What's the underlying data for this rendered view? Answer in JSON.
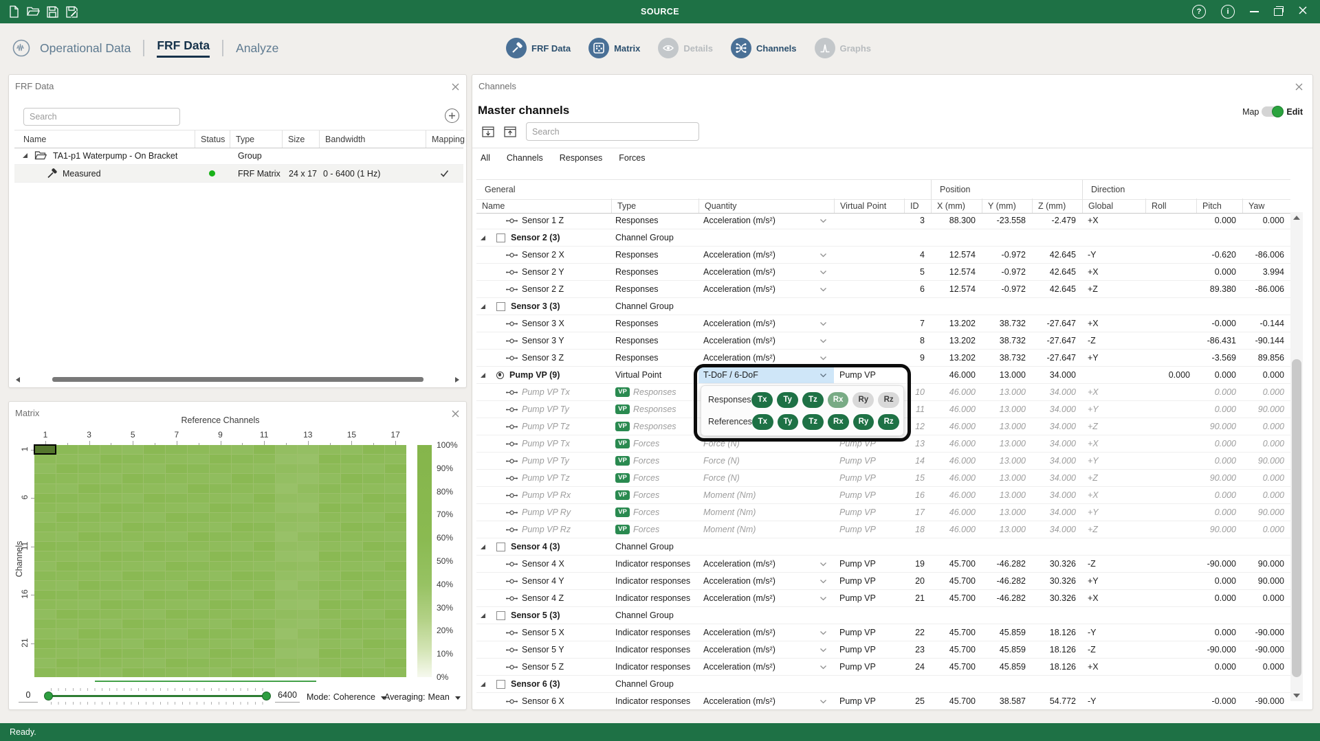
{
  "window": {
    "title": "SOURCE",
    "status_text": "Ready.",
    "help_glyph": "?",
    "info_glyph": "i",
    "toolbar_icons": [
      "new-file-icon",
      "open-file-icon",
      "save-icon",
      "save-as-icon"
    ],
    "window_controls": [
      "help-icon",
      "info-icon",
      "minimize-icon",
      "restore-icon",
      "close-icon"
    ]
  },
  "nav": {
    "tabs": [
      {
        "label": "Operational Data",
        "active": false
      },
      {
        "label": "FRF Data",
        "active": true
      },
      {
        "label": "Analyze",
        "active": false
      }
    ],
    "tools": [
      {
        "label": "FRF Data",
        "icon": "hammer-icon",
        "enabled": true
      },
      {
        "label": "Matrix",
        "icon": "matrix-icon",
        "enabled": true
      },
      {
        "label": "Details",
        "icon": "eye-icon",
        "enabled": false
      },
      {
        "label": "Channels",
        "icon": "channels-icon",
        "enabled": true
      },
      {
        "label": "Graphs",
        "icon": "graph-icon",
        "enabled": false
      }
    ]
  },
  "frf_panel": {
    "title": "FRF Data",
    "search_placeholder": "Search",
    "columns": [
      "Name",
      "Status",
      "Type",
      "Size",
      "Bandwidth",
      "Mapping"
    ],
    "rows": [
      {
        "kind": "group",
        "name": "TA1-p1 Waterpump - On Bracket",
        "type": "Group"
      },
      {
        "kind": "item",
        "name": "Measured",
        "status": "green",
        "type": "FRF Matrix",
        "size": "24 x 17",
        "bandwidth": "0 - 6400 (1 Hz)",
        "mapping": "checked"
      }
    ]
  },
  "matrix_panel": {
    "title": "Matrix",
    "range_min": "0",
    "range_max": "6400",
    "mode_label": "Mode:",
    "mode_value": "Coherence",
    "averaging_label": "Averaging:",
    "averaging_value": "Mean"
  },
  "chart_data": {
    "type": "heatmap",
    "title": "",
    "xlabel": "Reference Channels",
    "ylabel": "Channels",
    "n_cols": 17,
    "n_rows": 24,
    "x_ticks": [
      1,
      3,
      5,
      7,
      9,
      11,
      13,
      15,
      17
    ],
    "y_ticks": [
      1,
      6,
      11,
      16,
      21
    ],
    "uniform_value_pct": 78,
    "lighter_columns": [
      12,
      13
    ],
    "selected_cell": {
      "row": 1,
      "col": 1
    },
    "colorbar_ticks": [
      "100%",
      "90%",
      "80%",
      "70%",
      "60%",
      "50%",
      "40%",
      "30%",
      "20%",
      "10%",
      "0%"
    ],
    "colorbar_range_pct": [
      0,
      100
    ],
    "legend_position": "right"
  },
  "channels_panel": {
    "title": "Channels",
    "heading": "Master channels",
    "search_placeholder": "Search",
    "map_label": "Map",
    "edit_label": "Edit",
    "edit_active": true,
    "filters": [
      "All",
      "Channels",
      "Responses",
      "Forces"
    ],
    "column_groups": [
      "General",
      "Position",
      "Direction"
    ],
    "columns": [
      "Name",
      "Type",
      "Quantity",
      "Virtual Point",
      "ID",
      "X (mm)",
      "Y (mm)",
      "Z (mm)",
      "Global",
      "Roll",
      "Pitch",
      "Yaw"
    ],
    "rows": [
      {
        "kind": "ch",
        "name": "Sensor 1 Z",
        "type": "Responses",
        "quantity": "Acceleration (m/s²)",
        "chevron": true,
        "id": "3",
        "x": "88.300",
        "y": "-23.558",
        "z": "-2.479",
        "global": "+X",
        "pitch": "0.000",
        "yaw": "0.000"
      },
      {
        "kind": "group",
        "name": "Sensor 2 (3)",
        "type": "Channel Group"
      },
      {
        "kind": "ch",
        "name": "Sensor 2 X",
        "type": "Responses",
        "quantity": "Acceleration (m/s²)",
        "chevron": true,
        "id": "4",
        "x": "12.574",
        "y": "-0.972",
        "z": "42.645",
        "global": "-Y",
        "pitch": "-0.620",
        "yaw": "-86.006"
      },
      {
        "kind": "ch",
        "name": "Sensor 2 Y",
        "type": "Responses",
        "quantity": "Acceleration (m/s²)",
        "chevron": true,
        "id": "5",
        "x": "12.574",
        "y": "-0.972",
        "z": "42.645",
        "global": "+X",
        "pitch": "0.000",
        "yaw": "3.994"
      },
      {
        "kind": "ch",
        "name": "Sensor 2 Z",
        "type": "Responses",
        "quantity": "Acceleration (m/s²)",
        "chevron": true,
        "id": "6",
        "x": "12.574",
        "y": "-0.972",
        "z": "42.645",
        "global": "+Z",
        "pitch": "89.380",
        "yaw": "-86.006"
      },
      {
        "kind": "group",
        "name": "Sensor 3 (3)",
        "type": "Channel Group"
      },
      {
        "kind": "ch",
        "name": "Sensor 3 X",
        "type": "Responses",
        "quantity": "Acceleration (m/s²)",
        "chevron": true,
        "id": "7",
        "x": "13.202",
        "y": "38.732",
        "z": "-27.647",
        "global": "+X",
        "pitch": "-0.000",
        "yaw": "-0.144"
      },
      {
        "kind": "ch",
        "name": "Sensor 3 Y",
        "type": "Responses",
        "quantity": "Acceleration (m/s²)",
        "chevron": true,
        "id": "8",
        "x": "13.202",
        "y": "38.732",
        "z": "-27.647",
        "global": "-Z",
        "pitch": "-86.431",
        "yaw": "-90.144"
      },
      {
        "kind": "ch",
        "name": "Sensor 3 Z",
        "type": "Responses",
        "quantity": "Acceleration (m/s²)",
        "chevron": true,
        "id": "9",
        "x": "13.202",
        "y": "38.732",
        "z": "-27.647",
        "global": "+Y",
        "pitch": "-3.569",
        "yaw": "89.856"
      },
      {
        "kind": "vpgroup",
        "name": "Pump VP (9)",
        "type": "Virtual Point",
        "virtual_point": "Pump VP",
        "x": "46.000",
        "y": "13.000",
        "z": "34.000",
        "roll": "0.000",
        "pitch": "0.000",
        "yaw": "0.000"
      },
      {
        "kind": "vpch",
        "name": "Pump VP Tx",
        "type": "Responses",
        "id": "10",
        "x": "46.000",
        "y": "13.000",
        "z": "34.000",
        "global": "+X",
        "pitch": "0.000",
        "yaw": "0.000"
      },
      {
        "kind": "vpch",
        "name": "Pump VP Ty",
        "type": "Responses",
        "id": "11",
        "x": "46.000",
        "y": "13.000",
        "z": "34.000",
        "global": "+Y",
        "pitch": "0.000",
        "yaw": "90.000"
      },
      {
        "kind": "vpch",
        "name": "Pump VP Tz",
        "type": "Responses",
        "id": "12",
        "x": "46.000",
        "y": "13.000",
        "z": "34.000",
        "global": "+Z",
        "pitch": "90.000",
        "yaw": "0.000"
      },
      {
        "kind": "vpch",
        "name": "Pump VP Tx",
        "type": "Forces",
        "quantity": "Force (N)",
        "virtual_point": "Pump VP",
        "id": "13",
        "x": "46.000",
        "y": "13.000",
        "z": "34.000",
        "global": "+X",
        "pitch": "0.000",
        "yaw": "0.000"
      },
      {
        "kind": "vpch",
        "name": "Pump VP Ty",
        "type": "Forces",
        "quantity": "Force (N)",
        "virtual_point": "Pump VP",
        "id": "14",
        "x": "46.000",
        "y": "13.000",
        "z": "34.000",
        "global": "+Y",
        "pitch": "0.000",
        "yaw": "90.000"
      },
      {
        "kind": "vpch",
        "name": "Pump VP Tz",
        "type": "Forces",
        "quantity": "Force (N)",
        "virtual_point": "Pump VP",
        "id": "15",
        "x": "46.000",
        "y": "13.000",
        "z": "34.000",
        "global": "+Z",
        "pitch": "90.000",
        "yaw": "0.000"
      },
      {
        "kind": "vpch",
        "name": "Pump VP Rx",
        "type": "Forces",
        "quantity": "Moment (Nm)",
        "virtual_point": "Pump VP",
        "id": "16",
        "x": "46.000",
        "y": "13.000",
        "z": "34.000",
        "global": "+X",
        "pitch": "0.000",
        "yaw": "0.000"
      },
      {
        "kind": "vpch",
        "name": "Pump VP Ry",
        "type": "Forces",
        "quantity": "Moment (Nm)",
        "virtual_point": "Pump VP",
        "id": "17",
        "x": "46.000",
        "y": "13.000",
        "z": "34.000",
        "global": "+Y",
        "pitch": "0.000",
        "yaw": "90.000"
      },
      {
        "kind": "vpch",
        "name": "Pump VP Rz",
        "type": "Forces",
        "quantity": "Moment (Nm)",
        "virtual_point": "Pump VP",
        "id": "18",
        "x": "46.000",
        "y": "13.000",
        "z": "34.000",
        "global": "+Z",
        "pitch": "90.000",
        "yaw": "0.000"
      },
      {
        "kind": "group",
        "name": "Sensor 4 (3)",
        "type": "Channel Group"
      },
      {
        "kind": "ch",
        "name": "Sensor 4 X",
        "type": "Indicator responses",
        "quantity": "Acceleration (m/s²)",
        "chevron": true,
        "virtual_point": "Pump VP",
        "id": "19",
        "x": "45.700",
        "y": "-46.282",
        "z": "30.326",
        "global": "-Z",
        "pitch": "-90.000",
        "yaw": "90.000"
      },
      {
        "kind": "ch",
        "name": "Sensor 4 Y",
        "type": "Indicator responses",
        "quantity": "Acceleration (m/s²)",
        "chevron": true,
        "virtual_point": "Pump VP",
        "id": "20",
        "x": "45.700",
        "y": "-46.282",
        "z": "30.326",
        "global": "+Y",
        "pitch": "0.000",
        "yaw": "90.000"
      },
      {
        "kind": "ch",
        "name": "Sensor 4 Z",
        "type": "Indicator responses",
        "quantity": "Acceleration (m/s²)",
        "chevron": true,
        "virtual_point": "Pump VP",
        "id": "21",
        "x": "45.700",
        "y": "-46.282",
        "z": "30.326",
        "global": "+X",
        "pitch": "0.000",
        "yaw": "0.000"
      },
      {
        "kind": "group",
        "name": "Sensor 5 (3)",
        "type": "Channel Group"
      },
      {
        "kind": "ch",
        "name": "Sensor 5 X",
        "type": "Indicator responses",
        "quantity": "Acceleration (m/s²)",
        "chevron": true,
        "virtual_point": "Pump VP",
        "id": "22",
        "x": "45.700",
        "y": "45.859",
        "z": "18.126",
        "global": "-Y",
        "pitch": "0.000",
        "yaw": "-90.000"
      },
      {
        "kind": "ch",
        "name": "Sensor 5 Y",
        "type": "Indicator responses",
        "quantity": "Acceleration (m/s²)",
        "chevron": true,
        "virtual_point": "Pump VP",
        "id": "23",
        "x": "45.700",
        "y": "45.859",
        "z": "18.126",
        "global": "-Z",
        "pitch": "-90.000",
        "yaw": "-90.000"
      },
      {
        "kind": "ch",
        "name": "Sensor 5 Z",
        "type": "Indicator responses",
        "quantity": "Acceleration (m/s²)",
        "chevron": true,
        "virtual_point": "Pump VP",
        "id": "24",
        "x": "45.700",
        "y": "45.859",
        "z": "18.126",
        "global": "+X",
        "pitch": "0.000",
        "yaw": "0.000"
      },
      {
        "kind": "group",
        "name": "Sensor 6 (3)",
        "type": "Channel Group"
      },
      {
        "kind": "ch",
        "name": "Sensor 6 X",
        "type": "Indicator responses",
        "quantity": "Acceleration (m/s²)",
        "chevron": true,
        "virtual_point": "Pump VP",
        "id": "25",
        "x": "45.700",
        "y": "38.587",
        "z": "54.772",
        "global": "-Y",
        "pitch": "-0.000",
        "yaw": "-90.000"
      }
    ]
  },
  "popup": {
    "dropdown_value": "T-DoF / 6-DoF",
    "groups": [
      {
        "label": "Responses",
        "pills": [
          {
            "label": "Tx",
            "state": "on"
          },
          {
            "label": "Ty",
            "state": "on"
          },
          {
            "label": "Tz",
            "state": "on"
          },
          {
            "label": "Rx",
            "state": "mixed"
          },
          {
            "label": "Ry",
            "state": "off"
          },
          {
            "label": "Rz",
            "state": "off"
          }
        ]
      },
      {
        "label": "References",
        "pills": [
          {
            "label": "Tx",
            "state": "on"
          },
          {
            "label": "Ty",
            "state": "on"
          },
          {
            "label": "Tz",
            "state": "on"
          },
          {
            "label": "Rx",
            "state": "on"
          },
          {
            "label": "Ry",
            "state": "on"
          },
          {
            "label": "Rz",
            "state": "on"
          }
        ]
      }
    ]
  },
  "colors": {
    "brand_green": "#1e7145",
    "accent_blue": "#4a7096",
    "heatmap_green": "#8fbc55",
    "pill_on": "#1e7145",
    "pill_mixed": "#79ab85",
    "pill_off": "#d9d9d9",
    "dropdown_highlight": "#cfe6f8",
    "status_dot_green": "#19b219"
  }
}
